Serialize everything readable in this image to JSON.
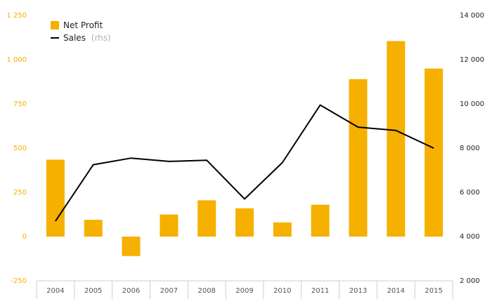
{
  "chart_data": {
    "type": "bar+line",
    "categories": [
      "2004",
      "2005",
      "2006",
      "2007",
      "2008",
      "2009",
      "2010",
      "2011",
      "2013",
      "2014",
      "2015"
    ],
    "series": [
      {
        "name": "Net Profit",
        "type": "bar",
        "axis": "left",
        "color": "#f5b000",
        "values": [
          435,
          95,
          -110,
          125,
          205,
          160,
          80,
          180,
          890,
          1105,
          950
        ]
      },
      {
        "name": "Sales",
        "name_suffix": "(rhs)",
        "type": "line",
        "axis": "right",
        "color": "#000000",
        "values": [
          4700,
          7250,
          7550,
          7400,
          7450,
          5700,
          7350,
          9950,
          8950,
          8800,
          8000
        ]
      }
    ],
    "y_left": {
      "ylim": [
        -250,
        1250
      ],
      "ticks": [
        -250,
        0,
        250,
        500,
        750,
        1000,
        1250
      ],
      "tick_labels": [
        "-250",
        "0",
        "250",
        "500",
        "750",
        "1 000",
        "1 250"
      ]
    },
    "y_right": {
      "ylim": [
        2000,
        14000
      ],
      "ticks": [
        2000,
        4000,
        6000,
        8000,
        10000,
        12000,
        14000
      ],
      "tick_labels": [
        "2 000",
        "4 000",
        "6 000",
        "8 000",
        "10 000",
        "12 000",
        "14 000"
      ]
    },
    "grid": false,
    "legend_position": "top-left",
    "title": "",
    "xlabel": "",
    "ylabel": ""
  }
}
